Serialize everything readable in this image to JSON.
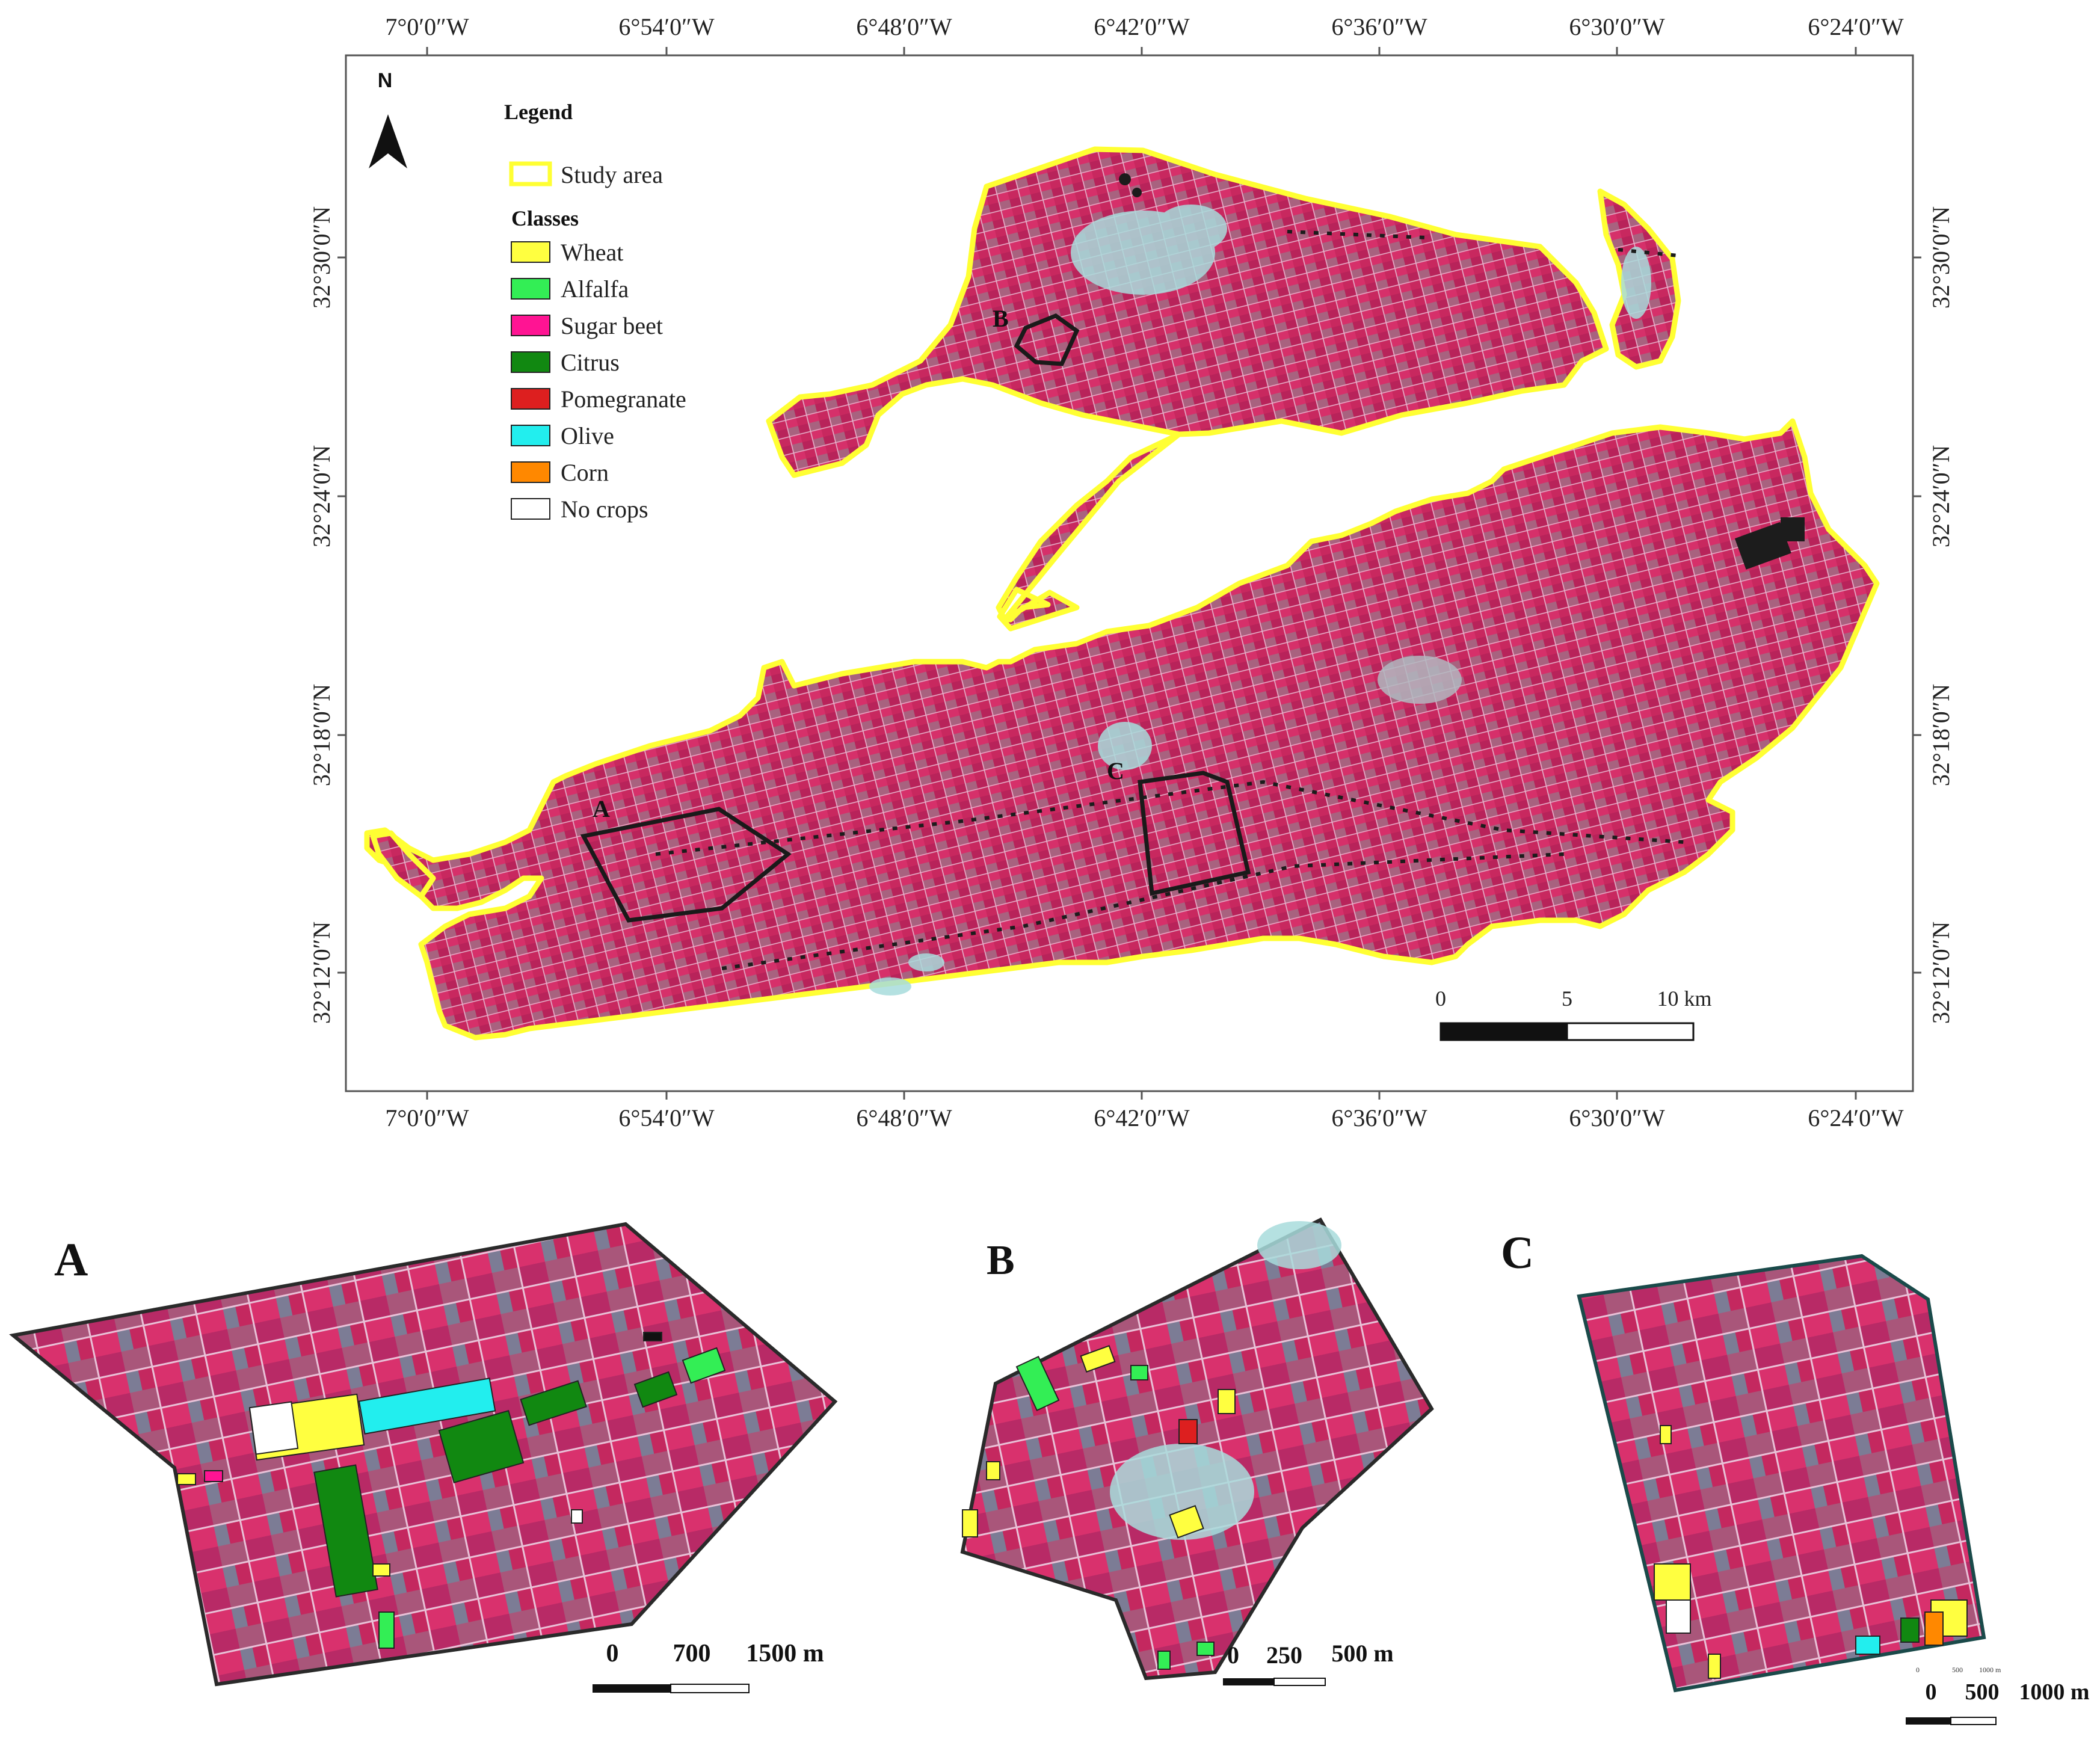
{
  "main_map": {
    "lon_labels": [
      "7°0′0″W",
      "6°54′0″W",
      "6°48′0″W",
      "6°42′0″W",
      "6°36′0″W",
      "6°30′0″W",
      "6°24′0″W"
    ],
    "lat_labels": [
      "32°30′0″N",
      "32°24′0″N",
      "32°18′0″N",
      "32°12′0″N"
    ],
    "north_label": "N",
    "inset_markers": [
      "A",
      "B",
      "C"
    ],
    "scale_bar": {
      "labels": [
        "0",
        "5",
        "10 km"
      ]
    },
    "legend": {
      "title": "Legend",
      "study_area": {
        "label": "Study area",
        "color": "#ffff33"
      },
      "classes_title": "Classes",
      "classes": [
        {
          "label": "Wheat",
          "color": "#ffff40"
        },
        {
          "label": "Alfalfa",
          "color": "#33ee55"
        },
        {
          "label": "Sugar beet",
          "color": "#ff1493"
        },
        {
          "label": "Citrus",
          "color": "#118811"
        },
        {
          "label": "Pomegranate",
          "color": "#dd1f1f"
        },
        {
          "label": "Olive",
          "color": "#22eeee"
        },
        {
          "label": "Corn",
          "color": "#ff8800"
        },
        {
          "label": "No crops",
          "color": "#ffffff"
        }
      ]
    }
  },
  "insets": [
    {
      "label": "A",
      "scale_labels": [
        "0",
        "700",
        "1500 m"
      ]
    },
    {
      "label": "B",
      "scale_labels": [
        "0",
        "250",
        "500 m"
      ]
    },
    {
      "label": "C",
      "scale_labels": [
        "0",
        "500",
        "1000 m"
      ],
      "small_scale_labels": [
        "0",
        "500",
        "1000 m"
      ]
    }
  ],
  "colors": {
    "imagery_base": "#c8285f",
    "imagery_dark": "#9a1f4c",
    "bare_soil": "#a8dcdc",
    "study_outline": "#ffff33",
    "inset_outline": "#1a1a1a"
  }
}
